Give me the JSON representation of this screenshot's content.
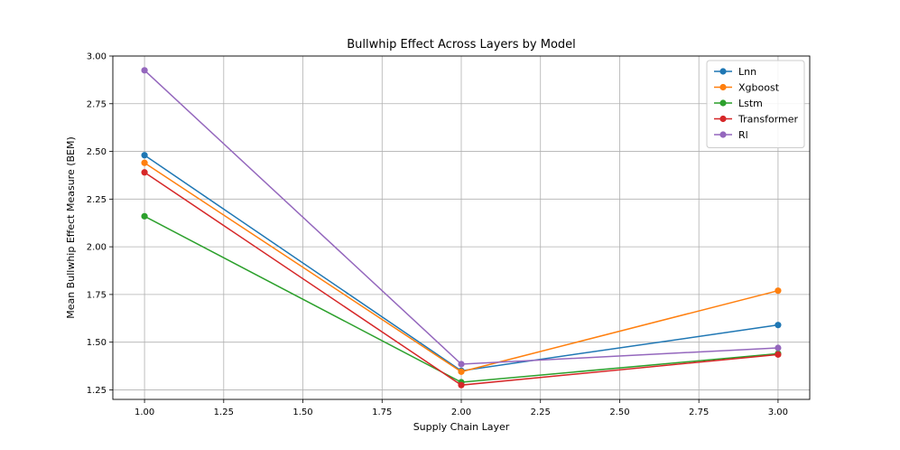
{
  "chart_data": {
    "type": "line",
    "title": "Bullwhip Effect Across Layers by Model",
    "xlabel": "Supply Chain Layer",
    "ylabel": "Mean Bullwhip Effect Measure (BEM)",
    "x": [
      1.0,
      2.0,
      3.0
    ],
    "xlim": [
      0.9,
      3.1
    ],
    "ylim": [
      1.2,
      3.0
    ],
    "xticks": [
      1.0,
      1.25,
      1.5,
      1.75,
      2.0,
      2.25,
      2.5,
      2.75,
      3.0
    ],
    "xtick_labels": [
      "1.00",
      "1.25",
      "1.50",
      "1.75",
      "2.00",
      "2.25",
      "2.50",
      "2.75",
      "3.00"
    ],
    "yticks": [
      1.25,
      1.5,
      1.75,
      2.0,
      2.25,
      2.5,
      2.75,
      3.0
    ],
    "ytick_labels": [
      "1.25",
      "1.50",
      "1.75",
      "2.00",
      "2.25",
      "2.50",
      "2.75",
      "3.00"
    ],
    "grid": true,
    "legend_position": "top-right",
    "series": [
      {
        "name": "Lnn",
        "color": "#1f77b4",
        "values": [
          2.48,
          1.35,
          1.59
        ]
      },
      {
        "name": "Xgboost",
        "color": "#ff7f0e",
        "values": [
          2.44,
          1.345,
          1.77
        ]
      },
      {
        "name": "Lstm",
        "color": "#2ca02c",
        "values": [
          2.16,
          1.29,
          1.44
        ]
      },
      {
        "name": "Transformer",
        "color": "#d62728",
        "values": [
          2.39,
          1.275,
          1.435
        ]
      },
      {
        "name": "Rl",
        "color": "#9467bd",
        "values": [
          2.925,
          1.385,
          1.47
        ]
      }
    ]
  }
}
